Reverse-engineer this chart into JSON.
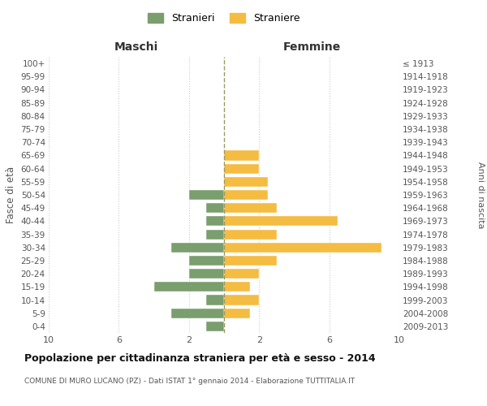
{
  "age_groups": [
    "100+",
    "95-99",
    "90-94",
    "85-89",
    "80-84",
    "75-79",
    "70-74",
    "65-69",
    "60-64",
    "55-59",
    "50-54",
    "45-49",
    "40-44",
    "35-39",
    "30-34",
    "25-29",
    "20-24",
    "15-19",
    "10-14",
    "5-9",
    "0-4"
  ],
  "birth_years": [
    "≤ 1913",
    "1914-1918",
    "1919-1923",
    "1924-1928",
    "1929-1933",
    "1934-1938",
    "1939-1943",
    "1944-1948",
    "1949-1953",
    "1954-1958",
    "1959-1963",
    "1964-1968",
    "1969-1973",
    "1974-1978",
    "1979-1983",
    "1984-1988",
    "1989-1993",
    "1994-1998",
    "1999-2003",
    "2004-2008",
    "2009-2013"
  ],
  "maschi": [
    0,
    0,
    0,
    0,
    0,
    0,
    0,
    0,
    0,
    0,
    2,
    1,
    1,
    1,
    3,
    2,
    2,
    4,
    1,
    3,
    1
  ],
  "femmine": [
    0,
    0,
    0,
    0,
    0,
    0,
    0,
    2,
    2,
    2.5,
    2.5,
    3,
    6.5,
    3,
    9,
    3,
    2,
    1.5,
    2,
    1.5,
    0
  ],
  "color_maschi": "#7a9e6e",
  "color_femmine": "#f5bc42",
  "title": "Popolazione per cittadinanza straniera per età e sesso - 2014",
  "subtitle": "COMUNE DI MURO LUCANO (PZ) - Dati ISTAT 1° gennaio 2014 - Elaborazione TUTTITALIA.IT",
  "xlabel_left": "Maschi",
  "xlabel_right": "Femmine",
  "ylabel_left": "Fasce di età",
  "ylabel_right": "Anni di nascita",
  "legend_maschi": "Stranieri",
  "legend_femmine": "Straniere",
  "xlim": 10,
  "background_color": "#ffffff",
  "grid_color": "#cccccc"
}
